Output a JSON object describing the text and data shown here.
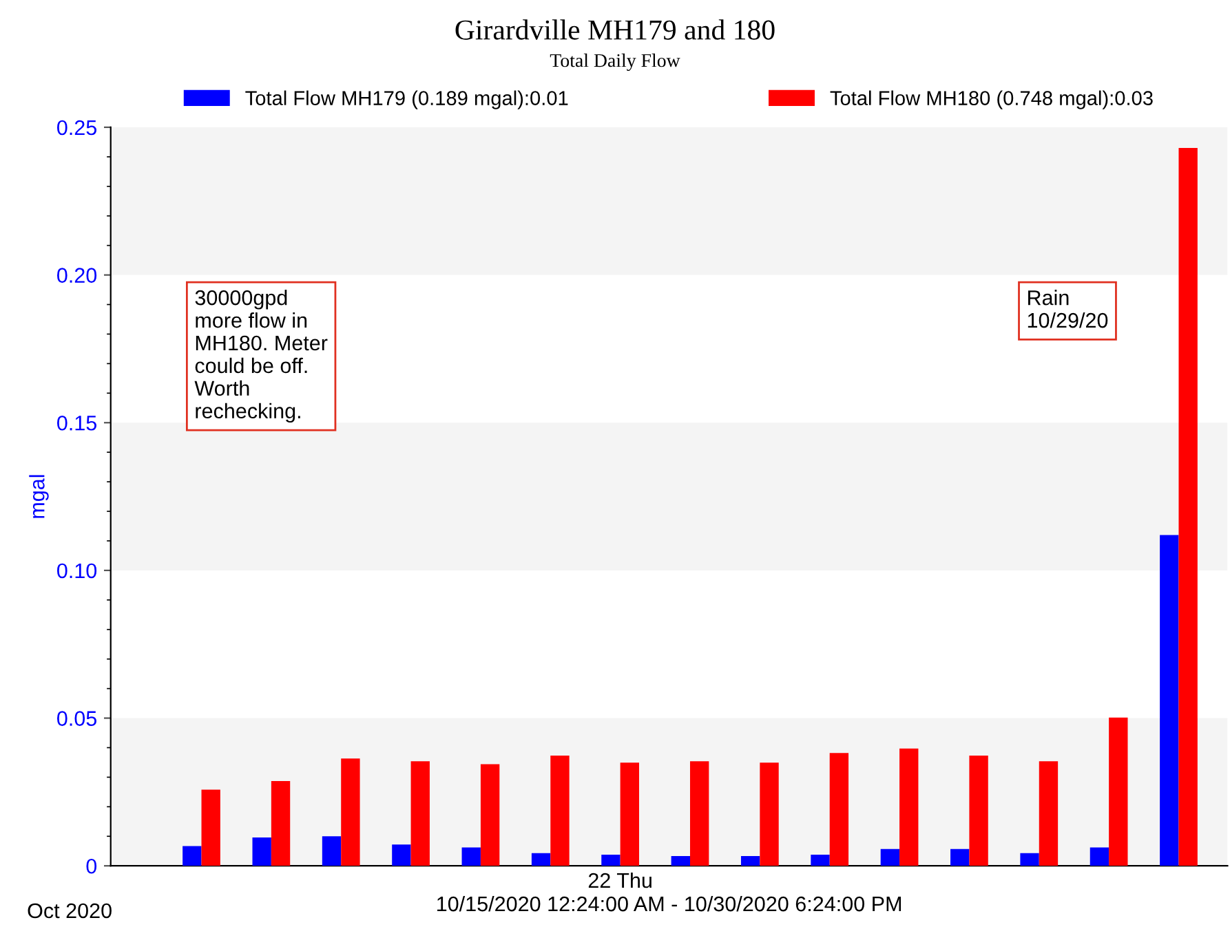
{
  "chart_data": {
    "type": "bar",
    "title": "Girardville MH179 and 180",
    "subtitle": "Total Daily Flow",
    "xlabel": "10/15/2020 12:24:00 AM - 10/30/2020 6:24:00 PM",
    "ylabel": "mgal",
    "categories": [
      null,
      null,
      null,
      null,
      null,
      null,
      "22 Thu",
      null,
      null,
      null,
      null,
      null,
      null,
      null,
      null
    ],
    "ylim": [
      0,
      0.25
    ],
    "yticks": [
      {
        "value": 0,
        "label": "0"
      },
      {
        "value": 0.05,
        "label": "0.05"
      },
      {
        "value": 0.1,
        "label": "0.10"
      },
      {
        "value": 0.15,
        "label": "0.15"
      },
      {
        "value": 0.2,
        "label": "0.20"
      },
      {
        "value": 0.25,
        "label": "0.25"
      }
    ],
    "series": [
      {
        "name": "Total Flow MH179 (0.189 mgal):0.01",
        "color": "#0000ff",
        "values": [
          0.0067,
          0.0096,
          0.01,
          0.0072,
          0.0062,
          0.0043,
          0.0038,
          0.0033,
          0.0033,
          0.0038,
          0.0057,
          0.0057,
          0.0043,
          0.0062,
          0.112
        ]
      },
      {
        "name": "Total Flow MH180 (0.748 mgal):0.03",
        "color": "#ff0000",
        "values": [
          0.0258,
          0.0287,
          0.0363,
          0.0354,
          0.0344,
          0.0373,
          0.0349,
          0.0354,
          0.0349,
          0.0382,
          0.0397,
          0.0373,
          0.0354,
          0.0502,
          0.243
        ]
      }
    ],
    "bands": [
      {
        "axis": "y",
        "from": 0,
        "to": 0.05,
        "color": "#f4f4f4"
      },
      {
        "axis": "y",
        "from": 0.1,
        "to": 0.15,
        "color": "#f4f4f4"
      },
      {
        "axis": "y",
        "from": 0.2,
        "to": 0.25,
        "color": "#f4f4f4"
      }
    ],
    "annotations": [
      "30000gpd\nmore flow in\nMH180. Meter\ncould be off.\nWorth\nrechecking.",
      "Rain\n10/29/20",
      "Oct 2020"
    ],
    "legend": "top",
    "grid": false
  }
}
